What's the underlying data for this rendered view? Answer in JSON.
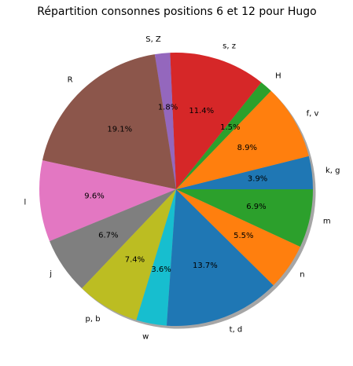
{
  "chart_data": {
    "type": "pie",
    "title": "Répartition consonnes positions 6 et 12 pour Hugo",
    "start_angle_deg": 0,
    "direction": "counterclockwise",
    "shadow": true,
    "slices": [
      {
        "label": "k, g",
        "value": 3.9,
        "pct_text": "3.9%",
        "color": "#1f77b4"
      },
      {
        "label": "f, v",
        "value": 8.9,
        "pct_text": "8.9%",
        "color": "#ff7f0e"
      },
      {
        "label": "H",
        "value": 1.5,
        "pct_text": "1.5%",
        "color": "#2ca02c"
      },
      {
        "label": "s, z",
        "value": 11.4,
        "pct_text": "11.4%",
        "color": "#d62728"
      },
      {
        "label": "S, Z",
        "value": 1.8,
        "pct_text": "1.8%",
        "color": "#9467bd"
      },
      {
        "label": "R",
        "value": 19.1,
        "pct_text": "19.1%",
        "color": "#8c564b"
      },
      {
        "label": "l",
        "value": 9.6,
        "pct_text": "9.6%",
        "color": "#e377c2"
      },
      {
        "label": "j",
        "value": 6.7,
        "pct_text": "6.7%",
        "color": "#7f7f7f"
      },
      {
        "label": "p, b",
        "value": 7.4,
        "pct_text": "7.4%",
        "color": "#bcbd22"
      },
      {
        "label": "w",
        "value": 3.6,
        "pct_text": "3.6%",
        "color": "#17becf"
      },
      {
        "label": "t, d",
        "value": 13.7,
        "pct_text": "13.7%",
        "color": "#1f77b4"
      },
      {
        "label": "n",
        "value": 5.5,
        "pct_text": "5.5%",
        "color": "#ff7f0e"
      },
      {
        "label": "m",
        "value": 6.9,
        "pct_text": "6.9%",
        "color": "#2ca02c"
      }
    ]
  }
}
